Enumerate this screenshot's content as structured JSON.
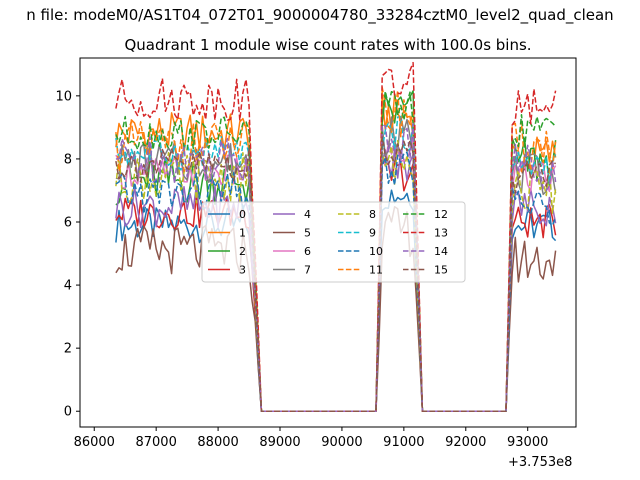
{
  "chart_data": {
    "type": "line",
    "suptitle": "n file: modeM0/AS1T04_072T01_9000004780_33284cztM0_level2_quad_clean",
    "title": "Quadrant 1 module wise count rates with 100.0s bins.",
    "xlabel": "",
    "ylabel": "",
    "x_offset_label": "+3.753e8",
    "xlim": [
      85770,
      93780
    ],
    "ylim": [
      -0.5,
      11.2
    ],
    "xticks": [
      86000,
      87000,
      88000,
      89000,
      90000,
      91000,
      92000,
      93000
    ],
    "yticks": [
      0,
      2,
      4,
      6,
      8,
      10
    ],
    "grid": false,
    "legend_position": "center",
    "legend_columns": 4,
    "segments": [
      {
        "start": 86350,
        "end": 88750,
        "drop_from": 88500
      },
      {
        "start": 89950,
        "end": 91350,
        "rise_to": 90650,
        "drop_from": 91150
      },
      {
        "start": 92450,
        "end": 93450,
        "rise_to": 92750
      }
    ],
    "series": [
      {
        "name": "0",
        "color": "#1f77b4",
        "dash": "solid",
        "levels": [
          5.9,
          6.9,
          5.9
        ]
      },
      {
        "name": "1",
        "color": "#ff7f0e",
        "dash": "solid",
        "levels": [
          8.8,
          9.4,
          8.1
        ]
      },
      {
        "name": "2",
        "color": "#2ca02c",
        "dash": "solid",
        "levels": [
          7.3,
          9.5,
          7.9
        ]
      },
      {
        "name": "3",
        "color": "#d62728",
        "dash": "solid",
        "levels": [
          6.3,
          7.5,
          6.0
        ]
      },
      {
        "name": "4",
        "color": "#9467bd",
        "dash": "solid",
        "levels": [
          6.5,
          7.8,
          6.5
        ]
      },
      {
        "name": "5",
        "color": "#8c564b",
        "dash": "solid",
        "levels": [
          5.1,
          5.7,
          4.8
        ]
      },
      {
        "name": "6",
        "color": "#e377c2",
        "dash": "solid",
        "levels": [
          7.6,
          8.2,
          7.4
        ]
      },
      {
        "name": "7",
        "color": "#7f7f7f",
        "dash": "solid",
        "levels": [
          7.9,
          8.7,
          7.5
        ]
      },
      {
        "name": "8",
        "color": "#bcbd22",
        "dash": "dashed",
        "levels": [
          7.4,
          7.9,
          7.0
        ]
      },
      {
        "name": "9",
        "color": "#17becf",
        "dash": "dashed",
        "levels": [
          8.2,
          8.8,
          7.8
        ]
      },
      {
        "name": "10",
        "color": "#1f77b4",
        "dash": "dashed",
        "levels": [
          6.9,
          7.6,
          6.5
        ]
      },
      {
        "name": "11",
        "color": "#ff7f0e",
        "dash": "dashed",
        "levels": [
          8.4,
          9.5,
          8.4
        ]
      },
      {
        "name": "12",
        "color": "#2ca02c",
        "dash": "dashed",
        "levels": [
          8.8,
          9.6,
          8.9
        ]
      },
      {
        "name": "13",
        "color": "#d62728",
        "dash": "dashed",
        "levels": [
          9.9,
          10.4,
          9.7
        ]
      },
      {
        "name": "14",
        "color": "#9467bd",
        "dash": "dashed",
        "levels": [
          8.0,
          8.6,
          7.8
        ]
      },
      {
        "name": "15",
        "color": "#8c564b",
        "dash": "dashed",
        "levels": [
          7.8,
          8.3,
          7.4
        ]
      }
    ]
  }
}
